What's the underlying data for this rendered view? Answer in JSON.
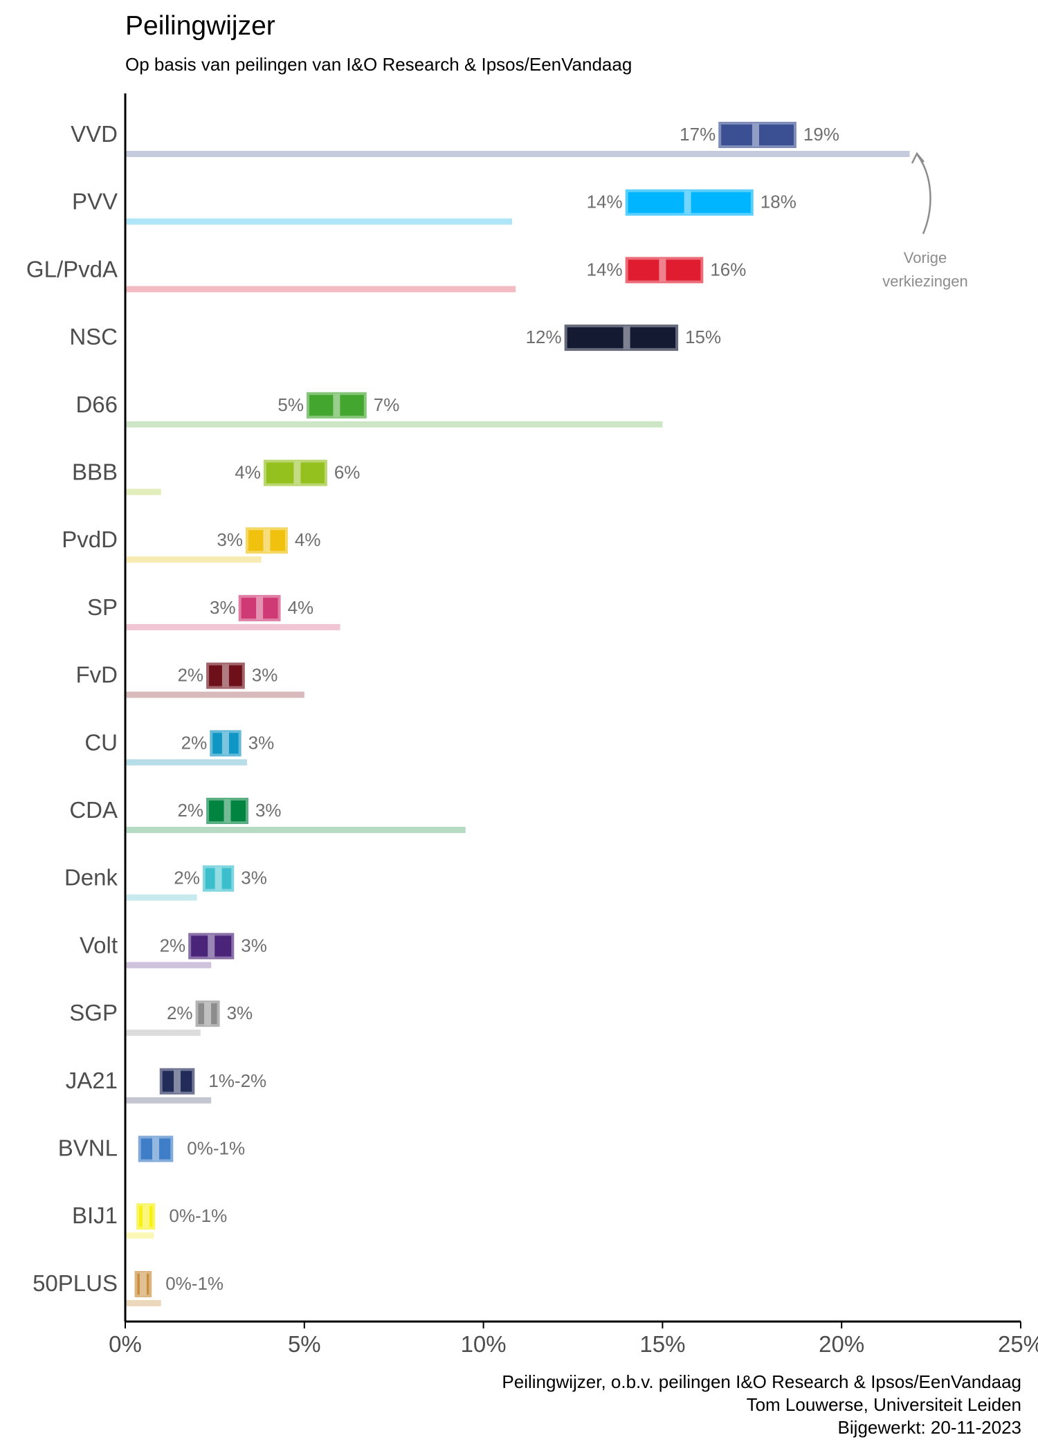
{
  "chart_data": {
    "type": "bar",
    "title": "Peilingwijzer",
    "subtitle": "Op basis van peilingen van I&O Research & Ipsos/EenVandaag",
    "xlim": [
      0,
      25
    ],
    "x_ticks": [
      0,
      5,
      10,
      15,
      20,
      25
    ],
    "x_tick_labels": [
      "0%",
      "5%",
      "10%",
      "15%",
      "20%",
      "25%"
    ],
    "annotation": [
      "Vorige",
      "verkiezingen"
    ],
    "grid": false,
    "parties": [
      {
        "name": "VVD",
        "low": 16.6,
        "high": 18.7,
        "mid": 17.6,
        "label_low": "17%",
        "label_high": "19%",
        "previous": 21.9,
        "color": "#3b4f93",
        "prev_color": "#c5cbdc"
      },
      {
        "name": "PVV",
        "low": 14.0,
        "high": 17.5,
        "mid": 15.7,
        "label_low": "14%",
        "label_high": "18%",
        "previous": 10.8,
        "color": "#00b5ff",
        "prev_color": "#aee6f7"
      },
      {
        "name": "GL/PvdA",
        "low": 14.0,
        "high": 16.1,
        "mid": 15.0,
        "label_low": "14%",
        "label_high": "16%",
        "previous": 10.9,
        "color": "#e01d30",
        "prev_color": "#f3bcc3"
      },
      {
        "name": "NSC",
        "low": 12.3,
        "high": 15.4,
        "mid": 14.0,
        "label_low": "12%",
        "label_high": "15%",
        "previous": null,
        "color": "#151a33",
        "prev_color": "#c4c6ce"
      },
      {
        "name": "D66",
        "low": 5.1,
        "high": 6.7,
        "mid": 5.9,
        "label_low": "5%",
        "label_high": "7%",
        "previous": 15.0,
        "color": "#43a72f",
        "prev_color": "#cde6c5"
      },
      {
        "name": "BBB",
        "low": 3.9,
        "high": 5.6,
        "mid": 4.8,
        "label_low": "4%",
        "label_high": "6%",
        "previous": 1.0,
        "color": "#94c11e",
        "prev_color": "#e2edbc"
      },
      {
        "name": "PvdD",
        "low": 3.4,
        "high": 4.5,
        "mid": 3.95,
        "label_low": "3%",
        "label_high": "4%",
        "previous": 3.8,
        "color": "#f0c20f",
        "prev_color": "#f8ebb2"
      },
      {
        "name": "SP",
        "low": 3.2,
        "high": 4.3,
        "mid": 3.75,
        "label_low": "3%",
        "label_high": "4%",
        "previous": 6.0,
        "color": "#cf3a74",
        "prev_color": "#f0c6d5"
      },
      {
        "name": "FvD",
        "low": 2.3,
        "high": 3.3,
        "mid": 2.8,
        "label_low": "2%",
        "label_high": "3%",
        "previous": 5.0,
        "color": "#6e1019",
        "prev_color": "#d8babc"
      },
      {
        "name": "CU",
        "low": 2.4,
        "high": 3.2,
        "mid": 2.8,
        "label_low": "2%",
        "label_high": "3%",
        "previous": 3.4,
        "color": "#0f96c4",
        "prev_color": "#b7dde9"
      },
      {
        "name": "CDA",
        "low": 2.3,
        "high": 3.4,
        "mid": 2.85,
        "label_low": "2%",
        "label_high": "3%",
        "previous": 9.5,
        "color": "#00843f",
        "prev_color": "#b5dbc4"
      },
      {
        "name": "Denk",
        "low": 2.2,
        "high": 3.0,
        "mid": 2.6,
        "label_low": "2%",
        "label_high": "3%",
        "previous": 2.0,
        "color": "#3bbfcc",
        "prev_color": "#c6eaee"
      },
      {
        "name": "Volt",
        "low": 1.8,
        "high": 3.0,
        "mid": 2.4,
        "label_low": "2%",
        "label_high": "3%",
        "previous": 2.4,
        "color": "#4a2479",
        "prev_color": "#cfc2dc"
      },
      {
        "name": "SGP",
        "low": 2.0,
        "high": 2.6,
        "mid": 2.3,
        "label_low": "2%",
        "label_high": "3%",
        "previous": 2.1,
        "color": "#8c8c8c",
        "prev_color": "#dcdcdc"
      },
      {
        "name": "JA21",
        "low": 1.0,
        "high": 1.9,
        "mid": 1.45,
        "label_low": "",
        "label_high": "1%-2%",
        "previous": 2.4,
        "color": "#212c59",
        "prev_color": "#c3c5d1"
      },
      {
        "name": "BVNL",
        "low": 0.4,
        "high": 1.3,
        "mid": 0.85,
        "label_low": "",
        "label_high": "0%-1%",
        "previous": null,
        "color": "#3f7dc6",
        "prev_color": "#c6d6ec"
      },
      {
        "name": "BIJ1",
        "low": 0.35,
        "high": 0.8,
        "mid": 0.58,
        "label_low": "",
        "label_high": "0%-1%",
        "previous": 0.8,
        "color": "#f7f011",
        "prev_color": "#fbf8b7"
      },
      {
        "name": "50PLUS",
        "low": 0.3,
        "high": 0.7,
        "mid": 0.5,
        "label_low": "",
        "label_high": "0%-1%",
        "previous": 1.0,
        "color": "#c98c3c",
        "prev_color": "#ecd9bd"
      }
    ]
  },
  "footer": {
    "line1": "Peilingwijzer, o.b.v. peilingen I&O Research & Ipsos/EenVandaag",
    "line2": "Tom Louwerse, Universiteit Leiden",
    "line3": "Bijgewerkt: 20-11-2023"
  }
}
